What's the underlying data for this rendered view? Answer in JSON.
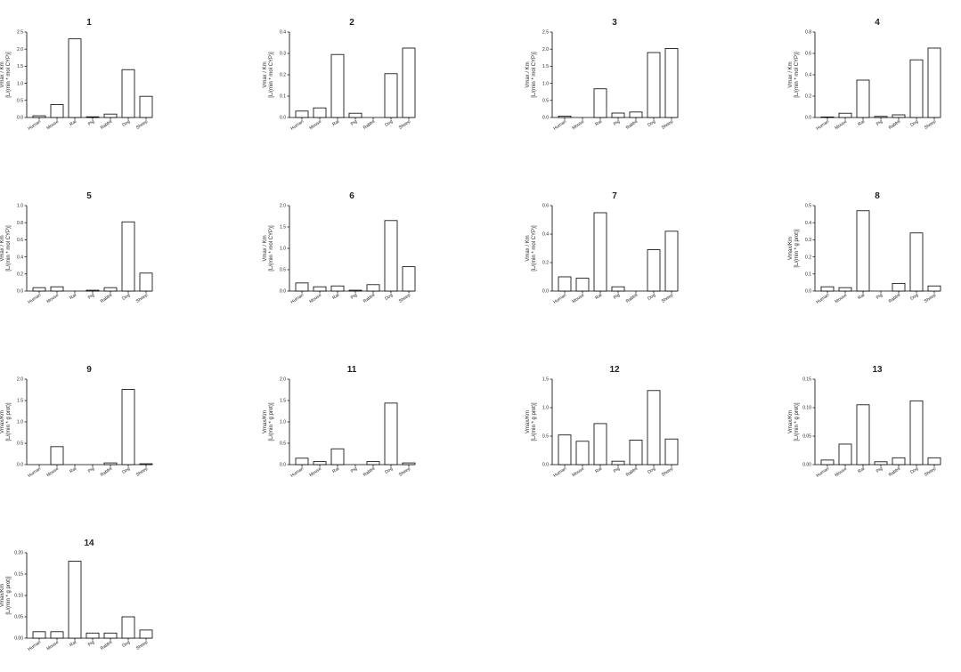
{
  "chart_data": [
    {
      "type": "bar",
      "title": "1",
      "ylabel": [
        "Vmax / Km",
        "[L/(min * mol CYP)]"
      ],
      "categories": [
        "Human",
        "Mouse",
        "Rat",
        "Pig",
        "Rabbit",
        "Dog",
        "Sheep"
      ],
      "values": [
        0.05,
        0.38,
        2.3,
        0.02,
        0.1,
        1.4,
        0.62
      ],
      "ylim": [
        0,
        2.5
      ],
      "yticks": [
        "0.0",
        "0.5",
        "1.0",
        "1.5",
        "2.0",
        "2.5"
      ]
    },
    {
      "type": "bar",
      "title": "2",
      "ylabel": [
        "Vmax / Km",
        "[L/(min * mol CYP)]"
      ],
      "categories": [
        "Human",
        "Mouse",
        "Rat",
        "Pig",
        "Rabbit",
        "Dog",
        "Sheep"
      ],
      "values": [
        0.03,
        0.045,
        0.295,
        0.02,
        0.0,
        0.205,
        0.325
      ],
      "ylim": [
        0,
        0.4
      ],
      "yticks": [
        "0.0",
        "0.1",
        "0.2",
        "0.3",
        "0.4"
      ]
    },
    {
      "type": "bar",
      "title": "3",
      "ylabel": [
        "Vmax / Km",
        "[L/(min * mol CYP)]"
      ],
      "categories": [
        "Human",
        "Mouse",
        "Rat",
        "Pig",
        "Rabbit",
        "Dog",
        "Sheep"
      ],
      "values": [
        0.04,
        0.0,
        0.84,
        0.13,
        0.16,
        1.9,
        2.02
      ],
      "ylim": [
        0,
        2.5
      ],
      "yticks": [
        "0.0",
        "0.5",
        "1.0",
        "1.5",
        "2.0",
        "2.5"
      ]
    },
    {
      "type": "bar",
      "title": "4",
      "ylabel": [
        "Vmax / Km",
        "[L/(min * mol CYP)]"
      ],
      "categories": [
        "Human",
        "Mouse",
        "Rat",
        "Pig",
        "Rabbit",
        "Dog",
        "Sheep"
      ],
      "values": [
        0.005,
        0.04,
        0.35,
        0.01,
        0.025,
        0.54,
        0.65
      ],
      "ylim": [
        0,
        0.8
      ],
      "yticks": [
        "0.0",
        "0.2",
        "0.4",
        "0.6",
        "0.8"
      ]
    },
    {
      "type": "bar",
      "title": "5",
      "ylabel": [
        "Vmax / Km",
        "[L/(min * mol CYP)]"
      ],
      "categories": [
        "Human",
        "Mouse",
        "Rat",
        "Pig",
        "Rabbit",
        "Dog",
        "Sheep"
      ],
      "values": [
        0.04,
        0.05,
        0.0,
        0.01,
        0.04,
        0.81,
        0.21
      ],
      "ylim": [
        0,
        1.0
      ],
      "yticks": [
        "0.0",
        "0.2",
        "0.4",
        "0.6",
        "0.8",
        "1.0"
      ]
    },
    {
      "type": "bar",
      "title": "6",
      "ylabel": [
        "Vmax / Km",
        "[L/(min * mol CYP)]"
      ],
      "categories": [
        "Human",
        "Mouse",
        "Rat",
        "Pig",
        "Rabbit",
        "Dog",
        "Sheep"
      ],
      "values": [
        0.19,
        0.1,
        0.12,
        0.02,
        0.15,
        1.65,
        0.57
      ],
      "ylim": [
        0,
        2.0
      ],
      "yticks": [
        "0.0",
        "0.5",
        "1.0",
        "1.5",
        "2.0"
      ]
    },
    {
      "type": "bar",
      "title": "7",
      "ylabel": [
        "Vmax / Km",
        "[L/(min * mol CYP)]"
      ],
      "categories": [
        "Human",
        "Mouse",
        "Rat",
        "Pig",
        "Rabbit",
        "Dog",
        "Sheep"
      ],
      "values": [
        0.1,
        0.09,
        0.55,
        0.03,
        0.0,
        0.29,
        0.42
      ],
      "ylim": [
        0,
        0.6
      ],
      "yticks": [
        "0.0",
        "0.2",
        "0.4",
        "0.6"
      ]
    },
    {
      "type": "bar",
      "title": "8",
      "ylabel": [
        "Vmax/Km",
        "[L/(min * g prot)]"
      ],
      "categories": [
        "Human",
        "Mouse",
        "Rat",
        "Pig",
        "Rabbit",
        "Dog",
        "Sheep"
      ],
      "values": [
        0.025,
        0.02,
        0.47,
        0.0,
        0.045,
        0.34,
        0.03
      ],
      "ylim": [
        0,
        0.5
      ],
      "yticks": [
        "0.0",
        "0.1",
        "0.2",
        "0.3",
        "0.4",
        "0.5"
      ]
    },
    {
      "type": "bar",
      "title": "9",
      "ylabel": [
        "Vmax/Km",
        "[L/(min * g prot)]"
      ],
      "categories": [
        "Human",
        "Mouse",
        "Rat",
        "Pig",
        "Rabbit",
        "Dog",
        "Sheep"
      ],
      "values": [
        0.0,
        0.42,
        0.0,
        0.0,
        0.04,
        1.76,
        0.02
      ],
      "ylim": [
        0,
        2.0
      ],
      "yticks": [
        "0.0",
        "0.5",
        "1.0",
        "1.5",
        "2.0"
      ]
    },
    {
      "type": "bar",
      "title": "11",
      "ylabel": [
        "Vmax/Km",
        "[L/(min * g prot)]"
      ],
      "categories": [
        "Human",
        "Mouse",
        "Rat",
        "Pig",
        "Rabbit",
        "Dog",
        "Sheep"
      ],
      "values": [
        0.15,
        0.07,
        0.37,
        0.0,
        0.07,
        1.44,
        0.04
      ],
      "ylim": [
        0,
        2.0
      ],
      "yticks": [
        "0.0",
        "0.5",
        "1.0",
        "1.5",
        "2.0"
      ]
    },
    {
      "type": "bar",
      "title": "12",
      "ylabel": [
        "Vmax/Km",
        "[L/(min * g prot)]"
      ],
      "categories": [
        "Human",
        "Mouse",
        "Rat",
        "Pig",
        "Rabbit",
        "Dog",
        "Sheep"
      ],
      "values": [
        0.52,
        0.41,
        0.72,
        0.06,
        0.43,
        1.3,
        0.45
      ],
      "ylim": [
        0,
        1.5
      ],
      "yticks": [
        "0.0",
        "0.5",
        "1.0",
        "1.5"
      ]
    },
    {
      "type": "bar",
      "title": "13",
      "ylabel": [
        "Vmax/Km",
        "[L/(min * g prot)]"
      ],
      "categories": [
        "Human",
        "Mouse",
        "Rat",
        "Pig",
        "Rabbit",
        "Dog",
        "Sheep"
      ],
      "values": [
        0.008,
        0.036,
        0.105,
        0.005,
        0.012,
        0.112,
        0.012
      ],
      "ylim": [
        0,
        0.15
      ],
      "yticks": [
        "0.00",
        "0.05",
        "0.10",
        "0.15"
      ]
    },
    {
      "type": "bar",
      "title": "14",
      "ylabel": [
        "Vmax/Km",
        "[L/(min * g prot)]"
      ],
      "categories": [
        "Human",
        "Mouse",
        "Rat",
        "Pig",
        "Rabbit",
        "Dog",
        "Sheep"
      ],
      "values": [
        0.015,
        0.015,
        0.18,
        0.012,
        0.012,
        0.05,
        0.019
      ],
      "ylim": [
        0,
        0.2
      ],
      "yticks": [
        "0.00",
        "0.05",
        "0.10",
        "0.15",
        "0.20"
      ]
    }
  ]
}
